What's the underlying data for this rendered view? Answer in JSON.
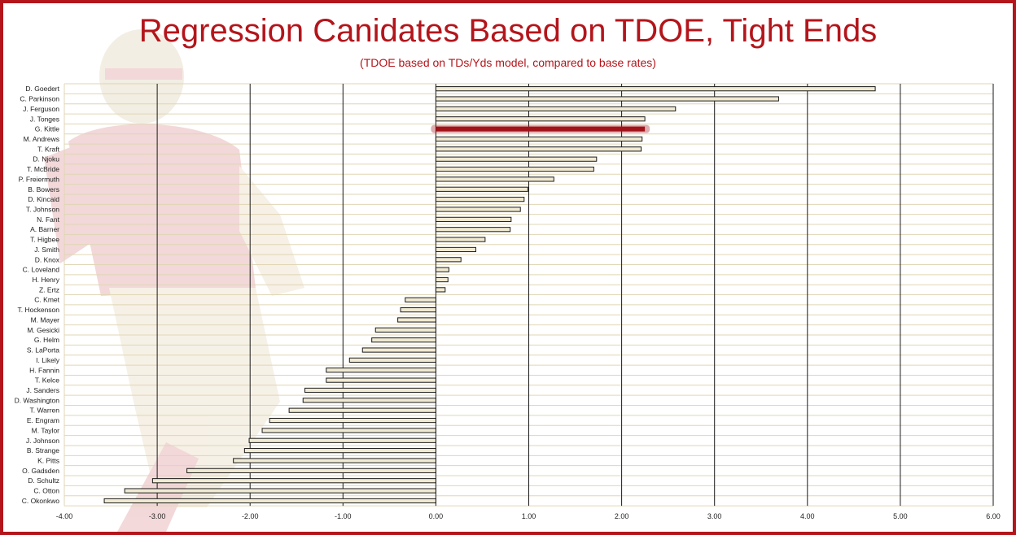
{
  "title": "Regression Canidates Based on TDOE, Tight Ends",
  "subtitle": "(TDOE based on TDs/Yds model, compared to base rates)",
  "colors": {
    "frame": "#b3151b",
    "title": "#b3151b",
    "bar_fill": "#f1ead2",
    "bar_stroke": "#1a1a1a",
    "highlight": "#a01419",
    "row_line": "#e0d6b4",
    "gridline": "#1a1a1a"
  },
  "chart_data": {
    "type": "bar",
    "orientation": "horizontal",
    "xlim": [
      -4.0,
      6.0
    ],
    "x_ticks": [
      "-4.00",
      "-3.00",
      "-2.00",
      "-1.00",
      "0.00",
      "1.00",
      "2.00",
      "3.00",
      "4.00",
      "5.00",
      "6.00"
    ],
    "x_tick_values": [
      -4,
      -3,
      -2,
      -1,
      0,
      1,
      2,
      3,
      4,
      5,
      6
    ],
    "grid": true,
    "legend": "none",
    "highlighted_category": "G. Kittle",
    "categories": [
      "D. Goedert",
      "C. Parkinson",
      "J. Ferguson",
      "J. Tonges",
      "G. Kittle",
      "M. Andrews",
      "T. Kraft",
      "D. Njoku",
      "T. McBride",
      "P. Freiermuth",
      "B. Bowers",
      "D. Kincaid",
      "T. Johnson",
      "N. Fant",
      "A. Barner",
      "T. Higbee",
      "J. Smith",
      "D. Knox",
      "C. Loveland",
      "H. Henry",
      "Z. Ertz",
      "C. Kmet",
      "T. Hockenson",
      "M. Mayer",
      "M. Gesicki",
      "G. Helm",
      "S. LaPorta",
      "I. Likely",
      "H. Fannin",
      "T. Kelce",
      "J. Sanders",
      "D. Washington",
      "T. Warren",
      "E. Engram",
      "M. Taylor",
      "J. Johnson",
      "B. Strange",
      "K. Pitts",
      "O. Gadsden",
      "D. Schultz",
      "C. Otton",
      "C. Okonkwo"
    ],
    "values": [
      4.73,
      3.69,
      2.58,
      2.25,
      2.25,
      2.22,
      2.21,
      1.73,
      1.7,
      1.27,
      0.99,
      0.95,
      0.91,
      0.81,
      0.8,
      0.53,
      0.43,
      0.27,
      0.14,
      0.13,
      0.1,
      -0.33,
      -0.38,
      -0.41,
      -0.65,
      -0.69,
      -0.79,
      -0.93,
      -1.18,
      -1.18,
      -1.41,
      -1.43,
      -1.58,
      -1.79,
      -1.87,
      -2.01,
      -2.06,
      -2.18,
      -2.68,
      -3.05,
      -3.35,
      -3.57
    ]
  }
}
